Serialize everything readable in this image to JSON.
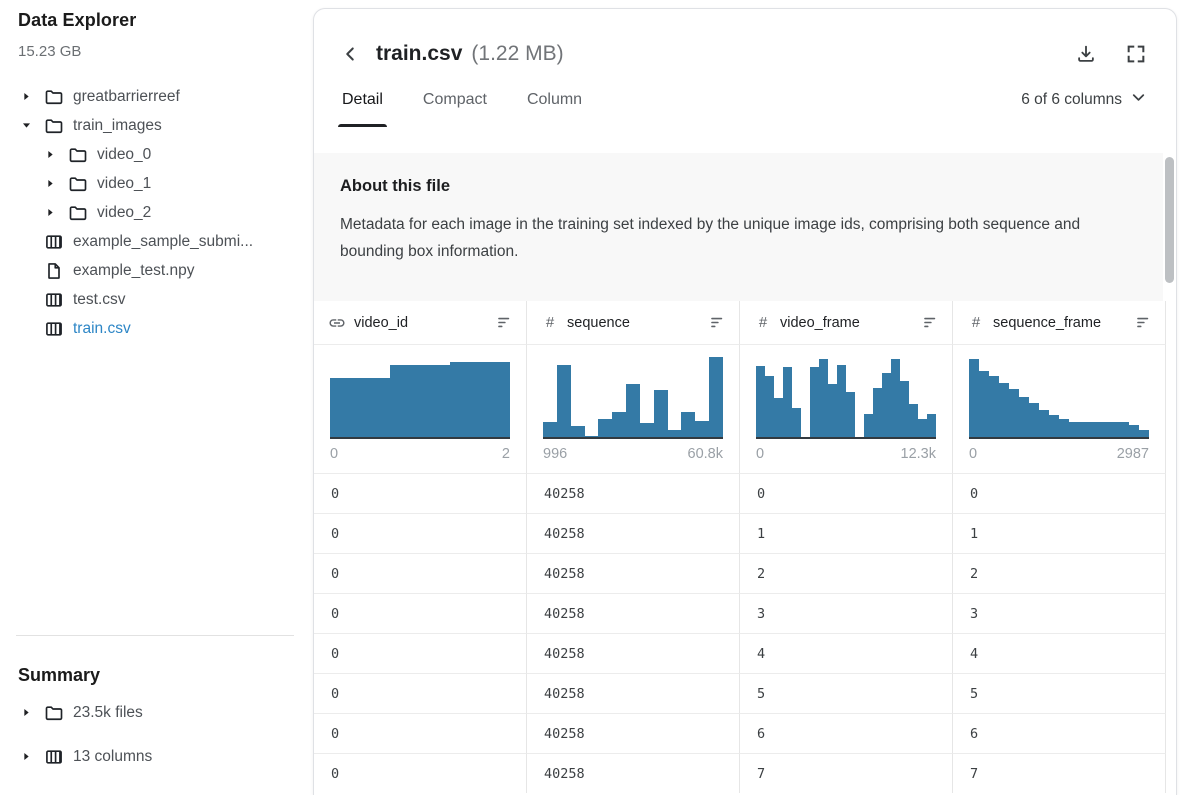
{
  "sidebar": {
    "title": "Data Explorer",
    "size": "15.23 GB",
    "tree": [
      {
        "label": "greatbarrierreef",
        "type": "folder",
        "caret": "right",
        "indent": 0,
        "selected": false
      },
      {
        "label": "train_images",
        "type": "folder",
        "caret": "down",
        "indent": 0,
        "selected": false
      },
      {
        "label": "video_0",
        "type": "folder",
        "caret": "right",
        "indent": 1,
        "selected": false
      },
      {
        "label": "video_1",
        "type": "folder",
        "caret": "right",
        "indent": 1,
        "selected": false
      },
      {
        "label": "video_2",
        "type": "folder",
        "caret": "right",
        "indent": 1,
        "selected": false
      },
      {
        "label": "example_sample_submi...",
        "type": "table",
        "caret": "none",
        "indent": 0,
        "selected": false
      },
      {
        "label": "example_test.npy",
        "type": "file",
        "caret": "none",
        "indent": 0,
        "selected": false
      },
      {
        "label": "test.csv",
        "type": "table",
        "caret": "none",
        "indent": 0,
        "selected": false
      },
      {
        "label": "train.csv",
        "type": "table",
        "caret": "none",
        "indent": 0,
        "selected": true
      }
    ],
    "summary": {
      "title": "Summary",
      "items": [
        {
          "label": "23.5k files",
          "type": "folder",
          "caret": "right"
        },
        {
          "label": "13 columns",
          "type": "table",
          "caret": "right"
        }
      ]
    }
  },
  "header": {
    "title": "train.csv",
    "size_label": "(1.22 MB)"
  },
  "tabs": [
    {
      "label": "Detail",
      "active": true
    },
    {
      "label": "Compact",
      "active": false
    },
    {
      "label": "Column",
      "active": false
    }
  ],
  "columns_selector": {
    "label": "6 of 6 columns"
  },
  "about": {
    "title": "About this file",
    "description": "Metadata for each image in the training set indexed by the unique image ids, comprising both sequence and bounding box information."
  },
  "table": {
    "columns": [
      {
        "name": "video_id",
        "type_icon": "link",
        "min": "0",
        "max": "2",
        "histogram": [
          72,
          88,
          92
        ]
      },
      {
        "name": "sequence",
        "type_icon": "hash",
        "min": "996",
        "max": "60.8k",
        "histogram": [
          18,
          88,
          13,
          1,
          22,
          30,
          65,
          17,
          57,
          8,
          30,
          20,
          97
        ]
      },
      {
        "name": "video_frame",
        "type_icon": "hash",
        "min": "0",
        "max": "12.3k",
        "histogram": [
          87,
          75,
          48,
          85,
          35,
          0,
          85,
          95,
          65,
          88,
          55,
          0,
          28,
          60,
          78,
          95,
          68,
          40,
          22,
          28
        ]
      },
      {
        "name": "sequence_frame",
        "type_icon": "hash",
        "min": "0",
        "max": "2987",
        "histogram": [
          95,
          80,
          74,
          66,
          58,
          49,
          41,
          33,
          27,
          22,
          18,
          18,
          18,
          18,
          18,
          18,
          15,
          9
        ]
      }
    ],
    "rows": [
      [
        "0",
        "40258",
        "0",
        "0"
      ],
      [
        "0",
        "40258",
        "1",
        "1"
      ],
      [
        "0",
        "40258",
        "2",
        "2"
      ],
      [
        "0",
        "40258",
        "3",
        "3"
      ],
      [
        "0",
        "40258",
        "4",
        "4"
      ],
      [
        "0",
        "40258",
        "5",
        "5"
      ],
      [
        "0",
        "40258",
        "6",
        "6"
      ],
      [
        "0",
        "40258",
        "7",
        "7"
      ]
    ]
  },
  "colors": {
    "histogram": "#347aa6",
    "selected_file": "#2d86c6"
  }
}
